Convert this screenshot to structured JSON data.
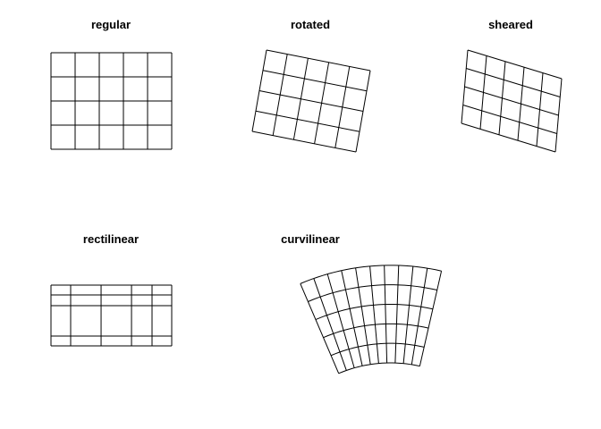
{
  "colors": {
    "background": "#ffffff",
    "line": "#000000"
  },
  "panels": [
    {
      "id": "regular",
      "title": "regular"
    },
    {
      "id": "rotated",
      "title": "rotated"
    },
    {
      "id": "sheared",
      "title": "sheared"
    },
    {
      "id": "rectilinear",
      "title": "rectilinear"
    },
    {
      "id": "curvilinear",
      "title": "curvilinear"
    }
  ]
}
